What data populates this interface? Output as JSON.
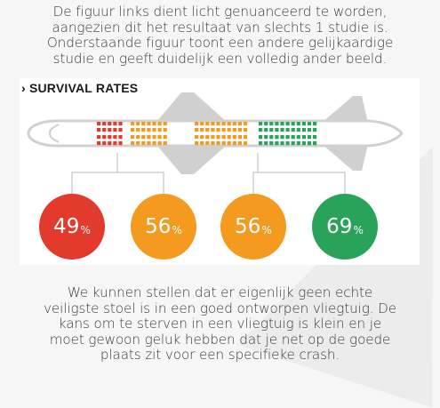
{
  "intro": {
    "lines": [
      "De figuur links dient licht genuanceerd te worden,",
      "aangezien dit het resultaat van slechts 1 studie is.",
      "Onderstaande figuur toont een andere gelijkaardige",
      "studie en geeft duidelijk een volledig ander beeld."
    ]
  },
  "infographic": {
    "title": "› SURVIVAL RATES",
    "colors": {
      "red": "#e23a2c",
      "orange": "#f39a1f",
      "green": "#2aa35a",
      "plane": "#d0d0d0"
    },
    "rates": [
      {
        "section": "front",
        "value": "49",
        "unit": "%",
        "color": "#e23a2c"
      },
      {
        "section": "front-middle",
        "value": "56",
        "unit": "%",
        "color": "#f39a1f"
      },
      {
        "section": "rear-middle",
        "value": "56",
        "unit": "%",
        "color": "#f39a1f"
      },
      {
        "section": "rear",
        "value": "69",
        "unit": "%",
        "color": "#2aa35a"
      }
    ]
  },
  "outro": {
    "lines": [
      "We kunnen stellen dat er eigenlijk geen echte",
      "veiligste stoel is in een goed ontworpen vliegtuig. De",
      "kans om te sterven in een vliegtuig is klein en je",
      "moet gewoon geluk hebben dat je net op de goede",
      "plaats zit voor een specifieke crash."
    ]
  }
}
